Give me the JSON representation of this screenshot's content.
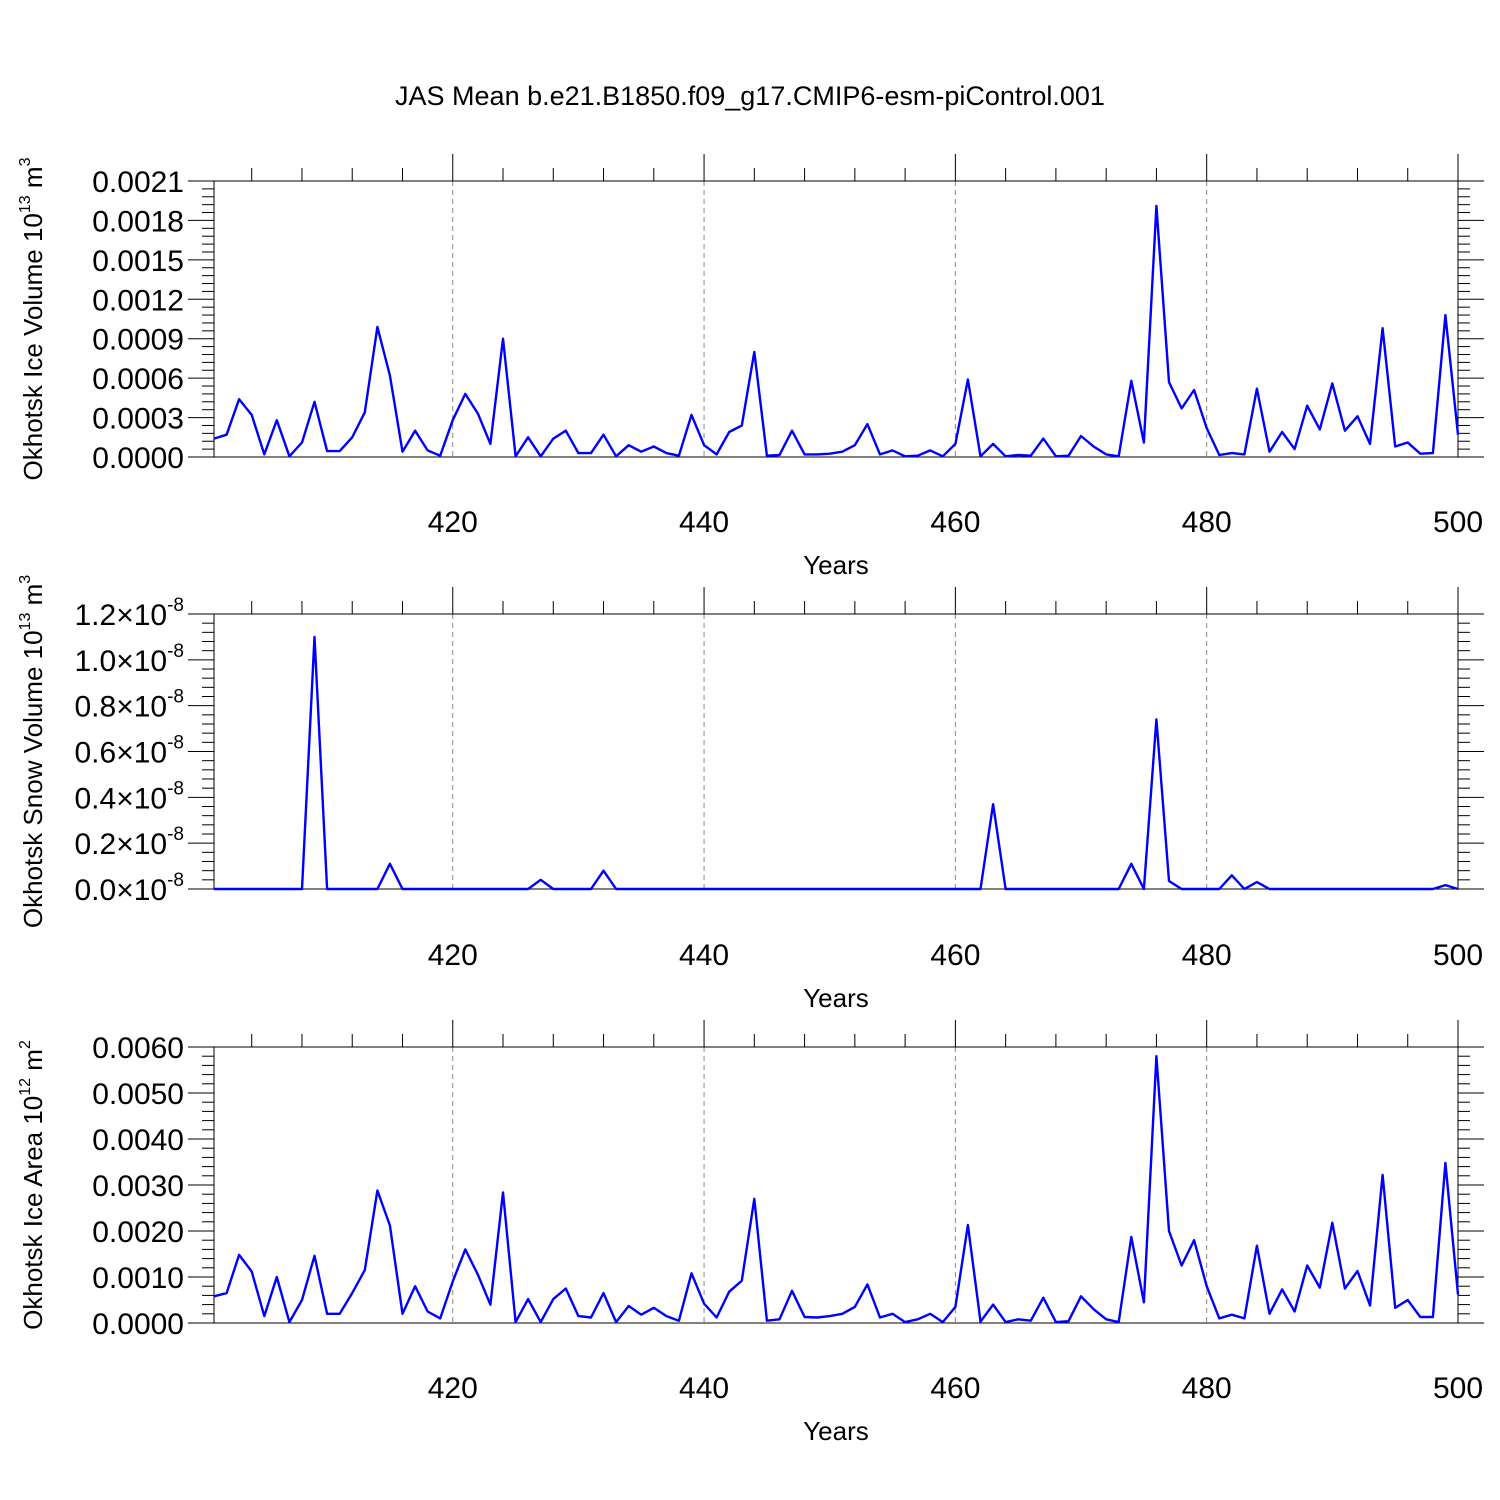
{
  "title": "JAS Mean b.e21.B1850.f09_g17.CMIP6-esm-piControl.001",
  "colors": {
    "line": "#0000ff",
    "grid": "#888888",
    "axis": "#000000"
  },
  "chart_data": [
    {
      "type": "line",
      "ylabel": "Okhotsk Ice Volume 10",
      "ylabel_sup": "13",
      "ylabel_unit": " m",
      "ylabel_unit_sup": "3",
      "xlabel": "Years",
      "xlim": [
        401,
        500
      ],
      "ylim": [
        0.0,
        0.0021
      ],
      "xticks": [
        420,
        440,
        460,
        480,
        500
      ],
      "xtick_labels": [
        "420",
        "440",
        "460",
        "480",
        "500"
      ],
      "yticks": [
        0.0,
        0.0003,
        0.0006,
        0.0009,
        0.0012,
        0.0015,
        0.0018,
        0.0021
      ],
      "ytick_labels": [
        "0.0000",
        "0.0003",
        "0.0006",
        "0.0009",
        "0.0012",
        "0.0015",
        "0.0018",
        "0.0021"
      ],
      "grid": "vertical dashed at major x ticks",
      "x_start": 401,
      "values": [
        0.00014,
        0.00017,
        0.00044,
        0.00032,
        2e-05,
        0.00028,
        5e-06,
        0.00011,
        0.00042,
        4.5e-05,
        4.5e-05,
        0.00015,
        0.00034,
        0.00099,
        0.00062,
        4e-05,
        0.0002,
        5e-05,
        1e-05,
        0.00028,
        0.00048,
        0.00033,
        0.0001,
        0.0009,
        5e-06,
        0.00015,
        5e-06,
        0.00014,
        0.0002,
        3e-05,
        3e-05,
        0.00017,
        5e-06,
        9e-05,
        4e-05,
        8e-05,
        3e-05,
        1e-05,
        0.00032,
        9e-05,
        2e-05,
        0.00019,
        0.00024,
        0.0008,
        1e-05,
        1.5e-05,
        0.0002,
        2e-05,
        2e-05,
        2.5e-05,
        4e-05,
        9e-05,
        0.00025,
        2e-05,
        5e-05,
        5e-06,
        1e-05,
        5e-05,
        5e-06,
        0.0001,
        0.00059,
        5e-06,
        0.0001,
        5e-06,
        1.5e-05,
        1e-05,
        0.00014,
        5e-06,
        1e-05,
        0.00016,
        8e-05,
        2e-05,
        5e-06,
        0.00058,
        0.00011,
        0.00191,
        0.00057,
        0.00037,
        0.00051,
        0.00022,
        1.5e-05,
        3e-05,
        2e-05,
        0.00052,
        4e-05,
        0.00019,
        6e-05,
        0.00039,
        0.00021,
        0.00056,
        0.0002,
        0.00031,
        0.0001,
        0.00098,
        8e-05,
        0.00011,
        2.5e-05,
        3e-05,
        0.00108,
        0.00017
      ]
    },
    {
      "type": "line",
      "ylabel": "Okhotsk Snow Volume 10",
      "ylabel_sup": "13",
      "ylabel_unit": " m",
      "ylabel_unit_sup": "3",
      "xlabel": "Years",
      "xlim": [
        401,
        500
      ],
      "ylim": [
        0.0,
        1.2e-08
      ],
      "xticks": [
        420,
        440,
        460,
        480,
        500
      ],
      "xtick_labels": [
        "420",
        "440",
        "460",
        "480",
        "500"
      ],
      "yticks": [
        0.0,
        2e-09,
        4e-09,
        6e-09,
        8e-09,
        1e-08,
        1.2e-08
      ],
      "ytick_mantissas": [
        "0.0",
        "0.2",
        "0.4",
        "0.6",
        "0.8",
        "1.0",
        "1.2"
      ],
      "ytick_times": "×10",
      "ytick_exponent": "-8",
      "grid": "vertical dashed at major x ticks",
      "x_start": 401,
      "values": [
        0,
        0,
        0,
        0,
        8e-13,
        0,
        0,
        0,
        1.1e-08,
        0,
        0,
        3e-13,
        4e-13,
        2e-13,
        1.1e-09,
        0,
        0,
        0,
        0,
        0,
        0,
        4e-13,
        0,
        0,
        0,
        0,
        4e-10,
        0,
        0,
        0,
        0,
        8e-10,
        0,
        0,
        0,
        7e-13,
        0,
        0,
        0,
        0,
        0,
        0,
        0,
        0,
        0,
        0,
        0,
        0,
        0,
        0,
        0,
        0,
        0,
        0,
        0,
        0,
        3e-13,
        0,
        0,
        2e-13,
        0,
        0,
        3.7e-09,
        0,
        0,
        0,
        0,
        0,
        0,
        0,
        0,
        0,
        0,
        1.1e-09,
        0,
        7.4e-09,
        3.5e-10,
        0,
        0,
        0,
        0,
        6e-10,
        0,
        3e-10,
        0,
        3e-13,
        0,
        3e-13,
        6e-13,
        0,
        2e-13,
        2e-13,
        0,
        3e-13,
        0,
        0,
        0,
        0,
        1.7e-10,
        0
      ]
    },
    {
      "type": "line",
      "ylabel": "Okhotsk Ice Area 10",
      "ylabel_sup": "12",
      "ylabel_unit": " m",
      "ylabel_unit_sup": "2",
      "xlabel": "Years",
      "xlim": [
        401,
        500
      ],
      "ylim": [
        0.0,
        0.006
      ],
      "xticks": [
        420,
        440,
        460,
        480,
        500
      ],
      "xtick_labels": [
        "420",
        "440",
        "460",
        "480",
        "500"
      ],
      "yticks": [
        0.0,
        0.001,
        0.002,
        0.003,
        0.004,
        0.005,
        0.006
      ],
      "ytick_labels": [
        "0.0000",
        "0.0010",
        "0.0020",
        "0.0030",
        "0.0040",
        "0.0050",
        "0.0060"
      ],
      "grid": "vertical dashed at major x ticks",
      "x_start": 401,
      "values": [
        0.00058,
        0.00065,
        0.00148,
        0.00112,
        0.00015,
        0.001,
        2e-05,
        0.0005,
        0.00146,
        0.0002,
        0.0002,
        0.00065,
        0.00115,
        0.00288,
        0.00212,
        0.0002,
        0.0008,
        0.00025,
        0.0001,
        0.0009,
        0.0016,
        0.00105,
        0.0004,
        0.00284,
        2e-05,
        0.00052,
        2e-05,
        0.00052,
        0.00075,
        0.00015,
        0.00012,
        0.00065,
        2e-05,
        0.00037,
        0.00018,
        0.00033,
        0.00015,
        5e-05,
        0.00108,
        0.00042,
        0.00012,
        0.00068,
        0.00092,
        0.0027,
        5e-05,
        8e-05,
        0.0007,
        0.00013,
        0.00012,
        0.00015,
        0.0002,
        0.00035,
        0.00084,
        0.00012,
        0.0002,
        2e-05,
        8e-05,
        0.0002,
        2e-05,
        0.00035,
        0.00213,
        3e-05,
        0.0004,
        2e-05,
        8e-05,
        5e-05,
        0.00055,
        2e-05,
        4e-05,
        0.00058,
        0.0003,
        8e-05,
        2e-05,
        0.00187,
        0.00045,
        0.0058,
        0.002,
        0.00125,
        0.0018,
        0.0008,
        0.0001,
        0.00018,
        0.0001,
        0.00168,
        0.0002,
        0.00073,
        0.00025,
        0.00125,
        0.00077,
        0.00218,
        0.00075,
        0.00113,
        0.00038,
        0.00322,
        0.00033,
        0.0005,
        0.00013,
        0.00013,
        0.00348,
        0.00062
      ]
    }
  ]
}
